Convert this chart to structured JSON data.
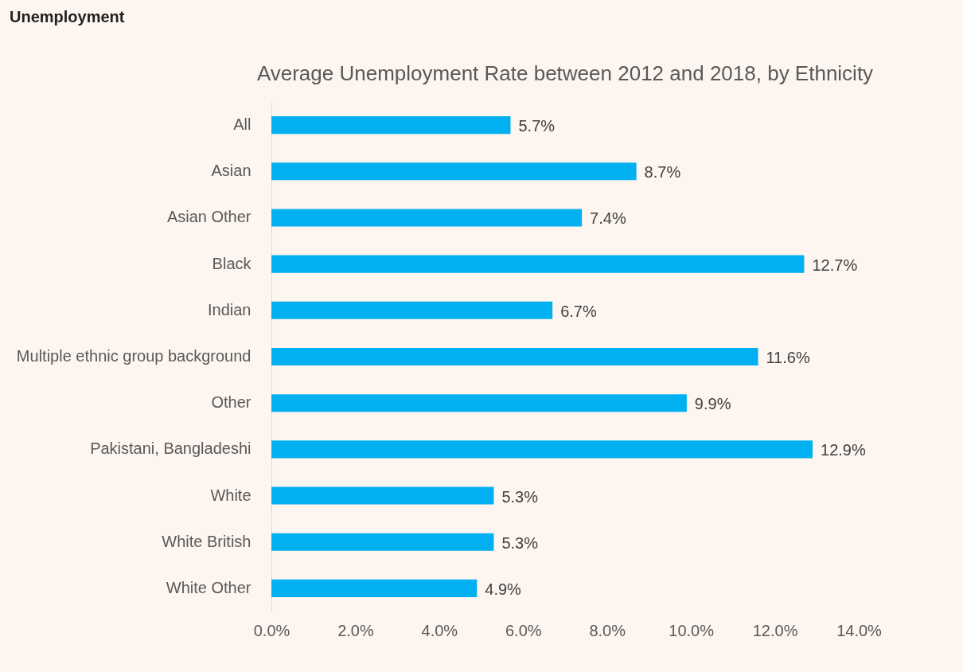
{
  "chart_data": {
    "type": "bar",
    "orientation": "horizontal",
    "title": "Unemployment",
    "subtitle": "Average Unemployment Rate between 2012 and 2018, by Ethnicity",
    "categories": [
      "All",
      "Asian",
      "Asian Other",
      "Black",
      "Indian",
      "Multiple ethnic group background",
      "Other",
      "Pakistani, Bangladeshi",
      "White",
      "White British",
      "White Other"
    ],
    "values": [
      5.7,
      8.7,
      7.4,
      12.7,
      6.7,
      11.6,
      9.9,
      12.9,
      5.3,
      5.3,
      4.9
    ],
    "value_labels": [
      "5.7%",
      "8.7%",
      "7.4%",
      "12.7%",
      "6.7%",
      "11.6%",
      "9.9%",
      "12.9%",
      "5.3%",
      "5.3%",
      "4.9%"
    ],
    "color": "#00b0f0",
    "xlim": [
      0,
      14
    ],
    "xticks": [
      {
        "value": 0,
        "label": "0.0%"
      },
      {
        "value": 2,
        "label": "2.0%"
      },
      {
        "value": 4,
        "label": "4.0%"
      },
      {
        "value": 6,
        "label": "6.0%"
      },
      {
        "value": 8,
        "label": "8.0%"
      },
      {
        "value": 10,
        "label": "10.0%"
      },
      {
        "value": 12,
        "label": "12.0%"
      },
      {
        "value": 14,
        "label": "14.0%"
      }
    ],
    "grid": false
  }
}
